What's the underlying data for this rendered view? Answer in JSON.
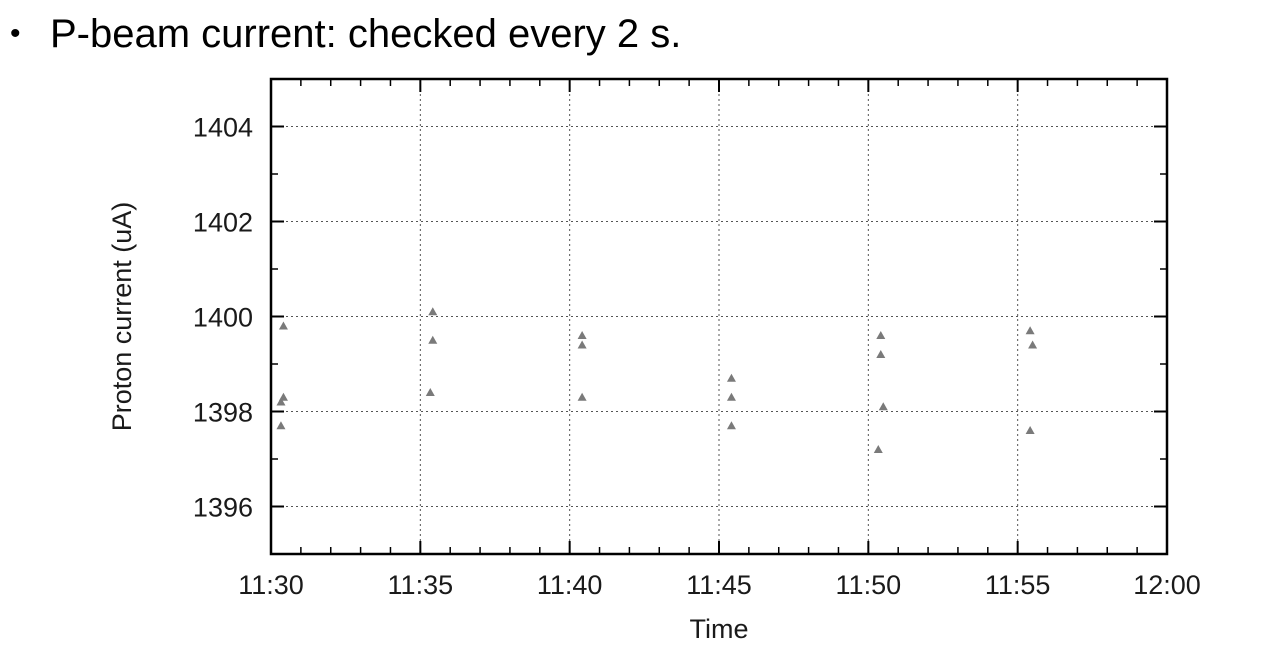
{
  "bullet": {
    "symbol": "•",
    "text": "P-beam current: checked every 2 s."
  },
  "chart_data": {
    "type": "scatter",
    "title": "",
    "xlabel": "Time",
    "ylabel": "Proton current (uA)",
    "x_ticks": [
      "11:30",
      "11:35",
      "11:40",
      "11:45",
      "11:50",
      "11:55",
      "12:00"
    ],
    "xlim": [
      "11:30",
      "12:00"
    ],
    "y_ticks": [
      1396,
      1398,
      1400,
      1402,
      1404
    ],
    "ylim": [
      1395,
      1405
    ],
    "grid": true,
    "marker": "triangle",
    "marker_color": "#7a7a7a",
    "points": [
      {
        "x": "11:30:25",
        "y": 1399.8
      },
      {
        "x": "11:30:25",
        "y": 1398.3
      },
      {
        "x": "11:30:20",
        "y": 1398.2
      },
      {
        "x": "11:30:20",
        "y": 1397.7
      },
      {
        "x": "11:35:25",
        "y": 1400.1
      },
      {
        "x": "11:35:25",
        "y": 1399.5
      },
      {
        "x": "11:35:20",
        "y": 1398.4
      },
      {
        "x": "11:40:25",
        "y": 1399.6
      },
      {
        "x": "11:40:25",
        "y": 1399.4
      },
      {
        "x": "11:40:25",
        "y": 1398.3
      },
      {
        "x": "11:45:25",
        "y": 1398.7
      },
      {
        "x": "11:45:25",
        "y": 1398.3
      },
      {
        "x": "11:45:25",
        "y": 1397.7
      },
      {
        "x": "11:50:25",
        "y": 1399.6
      },
      {
        "x": "11:50:25",
        "y": 1399.2
      },
      {
        "x": "11:50:30",
        "y": 1398.1
      },
      {
        "x": "11:50:20",
        "y": 1397.2
      },
      {
        "x": "11:55:25",
        "y": 1399.7
      },
      {
        "x": "11:55:30",
        "y": 1399.4
      },
      {
        "x": "11:55:25",
        "y": 1397.6
      }
    ]
  }
}
